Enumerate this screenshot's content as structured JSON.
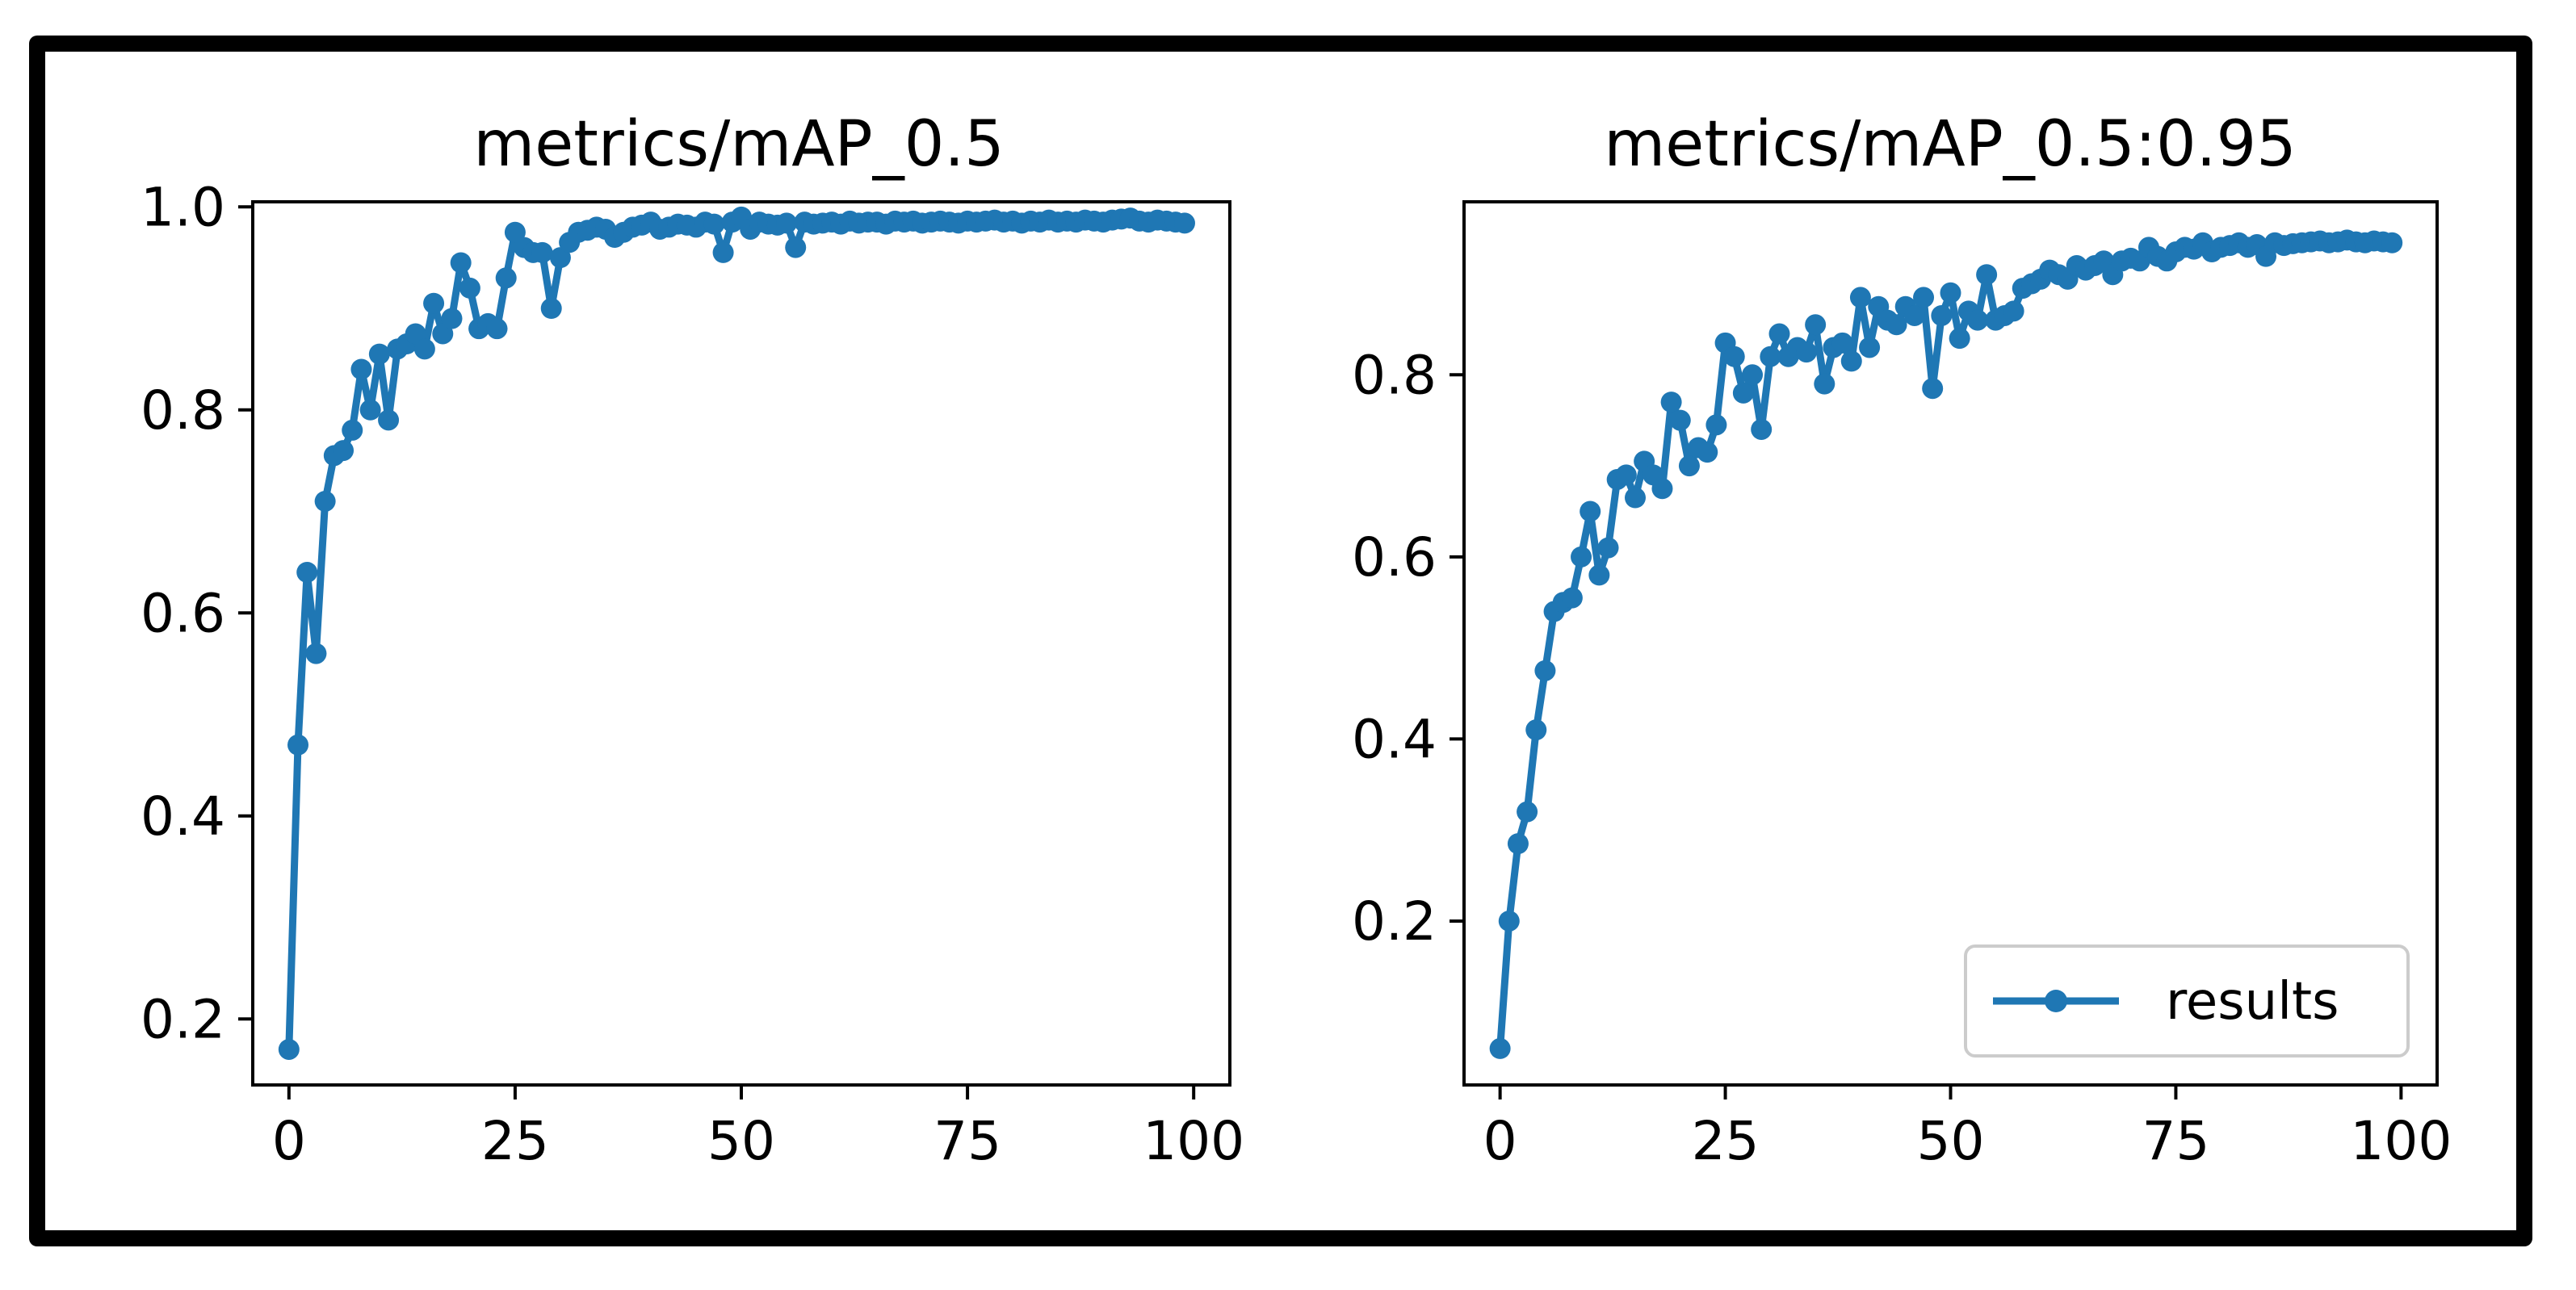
{
  "colors": {
    "series": "#1f77b4",
    "axis": "#000000",
    "frame": "#000000"
  },
  "chart_data": [
    {
      "type": "line",
      "title": "metrics/mAP_0.5",
      "xlabel": "",
      "ylabel": "",
      "xlim": [
        -4,
        104
      ],
      "ylim": [
        0.135,
        1.005
      ],
      "xticks": [
        0,
        25,
        50,
        75,
        100
      ],
      "xtick_labels": [
        "0",
        "25",
        "50",
        "75",
        "100"
      ],
      "yticks": [
        0.2,
        0.4,
        0.6,
        0.8,
        1.0
      ],
      "ytick_labels": [
        "0.2",
        "0.4",
        "0.6",
        "0.8",
        "1.0"
      ],
      "grid": false,
      "series": [
        {
          "name": "results",
          "marker": "o",
          "x": [
            0,
            1,
            2,
            3,
            4,
            5,
            6,
            7,
            8,
            9,
            10,
            11,
            12,
            13,
            14,
            15,
            16,
            17,
            18,
            19,
            20,
            21,
            22,
            23,
            24,
            25,
            26,
            27,
            28,
            29,
            30,
            31,
            32,
            33,
            34,
            35,
            36,
            37,
            38,
            39,
            40,
            41,
            42,
            43,
            44,
            45,
            46,
            47,
            48,
            49,
            50,
            51,
            52,
            53,
            54,
            55,
            56,
            57,
            58,
            59,
            60,
            61,
            62,
            63,
            64,
            65,
            66,
            67,
            68,
            69,
            70,
            71,
            72,
            73,
            74,
            75,
            76,
            77,
            78,
            79,
            80,
            81,
            82,
            83,
            84,
            85,
            86,
            87,
            88,
            89,
            90,
            91,
            92,
            93,
            94,
            95,
            96,
            97,
            98,
            99
          ],
          "values": [
            0.17,
            0.47,
            0.64,
            0.56,
            0.71,
            0.755,
            0.76,
            0.78,
            0.84,
            0.8,
            0.855,
            0.79,
            0.86,
            0.865,
            0.875,
            0.86,
            0.905,
            0.875,
            0.89,
            0.945,
            0.92,
            0.88,
            0.885,
            0.88,
            0.93,
            0.975,
            0.96,
            0.955,
            0.955,
            0.9,
            0.95,
            0.965,
            0.975,
            0.977,
            0.98,
            0.978,
            0.97,
            0.975,
            0.98,
            0.982,
            0.985,
            0.978,
            0.98,
            0.983,
            0.982,
            0.98,
            0.985,
            0.983,
            0.955,
            0.985,
            0.99,
            0.978,
            0.985,
            0.983,
            0.982,
            0.984,
            0.96,
            0.985,
            0.983,
            0.984,
            0.985,
            0.983,
            0.986,
            0.984,
            0.985,
            0.985,
            0.983,
            0.986,
            0.985,
            0.986,
            0.984,
            0.985,
            0.986,
            0.985,
            0.984,
            0.986,
            0.985,
            0.986,
            0.987,
            0.985,
            0.986,
            0.984,
            0.986,
            0.985,
            0.987,
            0.985,
            0.986,
            0.985,
            0.987,
            0.986,
            0.985,
            0.987,
            0.988,
            0.989,
            0.986,
            0.985,
            0.987,
            0.986,
            0.985,
            0.984
          ]
        }
      ]
    },
    {
      "type": "line",
      "title": "metrics/mAP_0.5:0.95",
      "xlabel": "",
      "ylabel": "",
      "xlim": [
        -4,
        104
      ],
      "ylim": [
        0.02,
        0.99
      ],
      "xticks": [
        0,
        25,
        50,
        75,
        100
      ],
      "xtick_labels": [
        "0",
        "25",
        "50",
        "75",
        "100"
      ],
      "yticks": [
        0.2,
        0.4,
        0.6,
        0.8
      ],
      "ytick_labels": [
        "0.2",
        "0.4",
        "0.6",
        "0.8"
      ],
      "grid": false,
      "legend": {
        "entries": [
          "results"
        ],
        "location": "lower-right"
      },
      "series": [
        {
          "name": "results",
          "marker": "o",
          "x": [
            0,
            1,
            2,
            3,
            4,
            5,
            6,
            7,
            8,
            9,
            10,
            11,
            12,
            13,
            14,
            15,
            16,
            17,
            18,
            19,
            20,
            21,
            22,
            23,
            24,
            25,
            26,
            27,
            28,
            29,
            30,
            31,
            32,
            33,
            34,
            35,
            36,
            37,
            38,
            39,
            40,
            41,
            42,
            43,
            44,
            45,
            46,
            47,
            48,
            49,
            50,
            51,
            52,
            53,
            54,
            55,
            56,
            57,
            58,
            59,
            60,
            61,
            62,
            63,
            64,
            65,
            66,
            67,
            68,
            69,
            70,
            71,
            72,
            73,
            74,
            75,
            76,
            77,
            78,
            79,
            80,
            81,
            82,
            83,
            84,
            85,
            86,
            87,
            88,
            89,
            90,
            91,
            92,
            93,
            94,
            95,
            96,
            97,
            98,
            99
          ],
          "values": [
            0.06,
            0.2,
            0.285,
            0.32,
            0.41,
            0.475,
            0.54,
            0.55,
            0.555,
            0.6,
            0.65,
            0.58,
            0.61,
            0.685,
            0.69,
            0.665,
            0.705,
            0.69,
            0.675,
            0.77,
            0.75,
            0.7,
            0.72,
            0.715,
            0.745,
            0.835,
            0.82,
            0.78,
            0.8,
            0.74,
            0.82,
            0.845,
            0.82,
            0.83,
            0.825,
            0.855,
            0.79,
            0.83,
            0.835,
            0.815,
            0.885,
            0.83,
            0.875,
            0.86,
            0.855,
            0.875,
            0.865,
            0.885,
            0.785,
            0.865,
            0.89,
            0.84,
            0.87,
            0.86,
            0.91,
            0.86,
            0.865,
            0.87,
            0.895,
            0.9,
            0.905,
            0.915,
            0.91,
            0.905,
            0.92,
            0.915,
            0.92,
            0.925,
            0.91,
            0.925,
            0.928,
            0.925,
            0.94,
            0.93,
            0.925,
            0.935,
            0.94,
            0.938,
            0.945,
            0.935,
            0.94,
            0.942,
            0.945,
            0.94,
            0.943,
            0.93,
            0.945,
            0.942,
            0.944,
            0.945,
            0.946,
            0.947,
            0.945,
            0.946,
            0.948,
            0.946,
            0.945,
            0.947,
            0.946,
            0.945
          ]
        }
      ]
    }
  ]
}
